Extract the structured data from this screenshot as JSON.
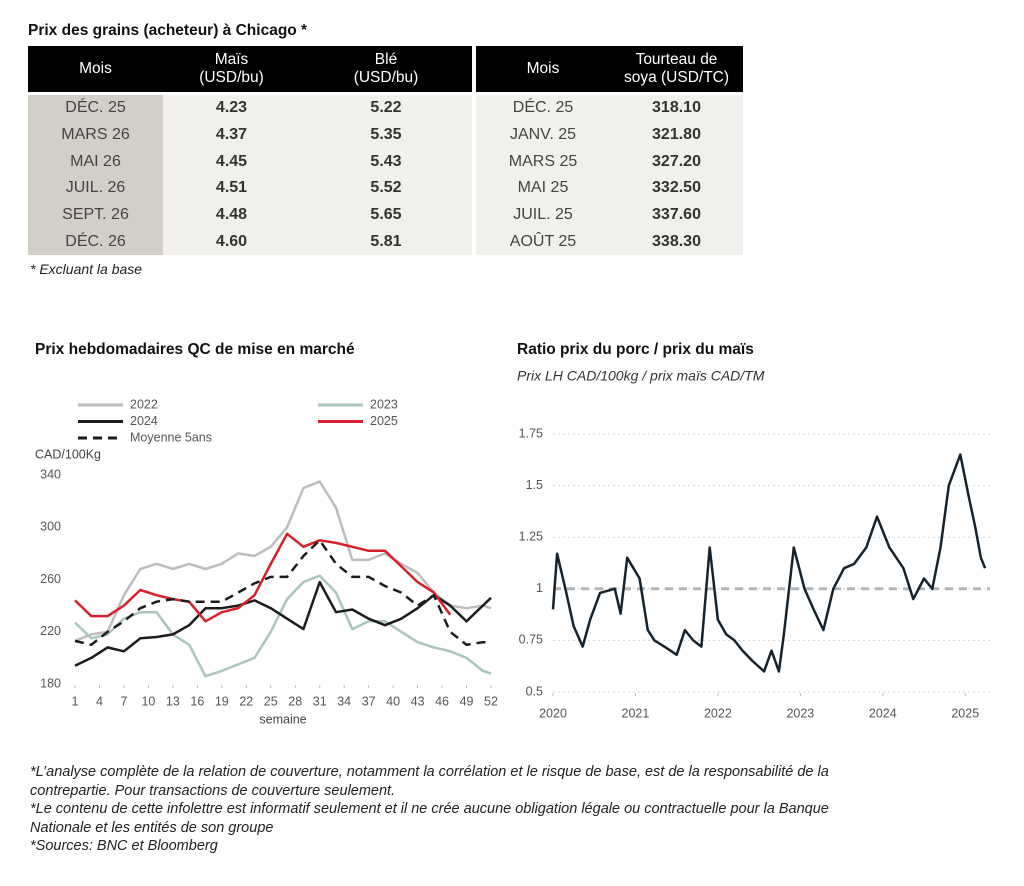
{
  "table": {
    "title": "Prix des grains (acheteur) à Chicago *",
    "headers": [
      "Mois",
      "Maïs\n(USD/bu)",
      "Blé\n(USD/bu)",
      "Mois",
      "Tourteau de\nsoya (USD/TC)"
    ],
    "rows": [
      [
        "DÉC. 25",
        "4.23",
        "5.22",
        "DÉC. 25",
        "318.10"
      ],
      [
        "MARS 26",
        "4.37",
        "5.35",
        "JANV. 25",
        "321.80"
      ],
      [
        "MAI 26",
        "4.45",
        "5.43",
        "MARS 25",
        "327.20"
      ],
      [
        "JUIL. 26",
        "4.51",
        "5.52",
        "MAI 25",
        "332.50"
      ],
      [
        "SEPT. 26",
        "4.48",
        "5.65",
        "JUIL. 25",
        "337.60"
      ],
      [
        "DÉC. 26",
        "4.60",
        "5.81",
        "AOÛT 25",
        "338.30"
      ]
    ],
    "note": "* Excluant la base"
  },
  "chart_data": [
    {
      "type": "line",
      "title": "Prix hebdomadaires QC de mise en marché",
      "y_label": "CAD/100Kg",
      "x_label": "semaine",
      "x": [
        1,
        3,
        5,
        7,
        9,
        11,
        13,
        15,
        17,
        19,
        21,
        23,
        25,
        27,
        29,
        31,
        33,
        35,
        37,
        39,
        41,
        43,
        45,
        47,
        49,
        51,
        52
      ],
      "xlim": [
        1,
        52
      ],
      "xticks": [
        1,
        4,
        7,
        10,
        13,
        16,
        19,
        22,
        25,
        28,
        31,
        34,
        37,
        40,
        43,
        46,
        49,
        52
      ],
      "ylim": [
        180,
        340
      ],
      "yticks": [
        180,
        220,
        260,
        300,
        340
      ],
      "grid": false,
      "legend": "top-left",
      "series": [
        {
          "name": "2022",
          "color": "#bdbdbd",
          "values": [
            213,
            218,
            220,
            248,
            268,
            272,
            268,
            272,
            268,
            272,
            280,
            278,
            285,
            300,
            330,
            335,
            315,
            275,
            275,
            280,
            272,
            265,
            250,
            240,
            238,
            240,
            238
          ]
        },
        {
          "name": "2023",
          "color": "#a9c6b9",
          "values": [
            227,
            215,
            218,
            230,
            235,
            235,
            218,
            210,
            186,
            190,
            195,
            200,
            220,
            245,
            258,
            263,
            250,
            222,
            228,
            228,
            220,
            212,
            208,
            205,
            200,
            190,
            188
          ]
        },
        {
          "name": "2024",
          "color": "#1c1c1c",
          "values": [
            194,
            200,
            208,
            205,
            215,
            216,
            218,
            225,
            238,
            238,
            240,
            244,
            238,
            230,
            222,
            258,
            235,
            237,
            230,
            225,
            230,
            238,
            248,
            240,
            228,
            240,
            246
          ]
        },
        {
          "name": "2025",
          "color": "#d7202b",
          "values": [
            244,
            232,
            232,
            240,
            252,
            248,
            245,
            243,
            228,
            235,
            238,
            248,
            272,
            295,
            285,
            290,
            288,
            285,
            282,
            282,
            270,
            258,
            250,
            233,
            null,
            null,
            null
          ]
        },
        {
          "name": "Moyenne 5ans",
          "color": "#1c1c1c",
          "style": "dashed",
          "values": [
            213,
            210,
            220,
            228,
            238,
            243,
            245,
            243,
            243,
            243,
            250,
            257,
            262,
            262,
            278,
            290,
            272,
            262,
            262,
            255,
            250,
            240,
            248,
            220,
            210,
            212,
            212
          ]
        }
      ]
    },
    {
      "type": "line",
      "title": "Ratio prix du porc / prix du maïs",
      "subtitle": "Prix LH CAD/100kg / prix maïs CAD/TM",
      "x": [
        2020,
        2020.05,
        2020.15,
        2020.25,
        2020.36,
        2020.45,
        2020.57,
        2020.75,
        2020.82,
        2020.9,
        2021.05,
        2021.15,
        2021.23,
        2021.35,
        2021.5,
        2021.6,
        2021.7,
        2021.8,
        2021.9,
        2022,
        2022.1,
        2022.2,
        2022.3,
        2022.42,
        2022.56,
        2022.65,
        2022.74,
        2022.8,
        2022.92,
        2023.05,
        2023.16,
        2023.28,
        2023.4,
        2023.53,
        2023.65,
        2023.8,
        2023.93,
        2024.08,
        2024.25,
        2024.37,
        2024.5,
        2024.6,
        2024.7,
        2024.8,
        2024.94,
        2025.04,
        2025.12,
        2025.19,
        2025.24
      ],
      "xlim": [
        2020,
        2025.3
      ],
      "xticks": [
        2020,
        2021,
        2022,
        2023,
        2024,
        2025
      ],
      "ylim": [
        0.5,
        1.75
      ],
      "yticks": [
        0.5,
        0.75,
        1,
        1.25,
        1.5,
        1.75
      ],
      "grid": true,
      "reference_line": 1,
      "series": [
        {
          "color": "#17232c",
          "values": [
            0.9,
            1.17,
            1.0,
            0.82,
            0.72,
            0.85,
            0.98,
            1.0,
            0.88,
            1.15,
            1.05,
            0.8,
            0.75,
            0.72,
            0.68,
            0.8,
            0.75,
            0.72,
            1.2,
            0.85,
            0.78,
            0.75,
            0.7,
            0.65,
            0.6,
            0.7,
            0.6,
            0.78,
            1.2,
            1.0,
            0.9,
            0.8,
            1.0,
            1.1,
            1.12,
            1.2,
            1.35,
            1.2,
            1.1,
            0.95,
            1.05,
            1.0,
            1.2,
            1.5,
            1.65,
            1.45,
            1.3,
            1.15,
            1.1
          ]
        }
      ]
    }
  ],
  "footer": [
    "*L’analyse complète de la relation de couverture, notamment la corrélation et le risque de base, est de la responsabilité de la contrepartie. Pour transactions de couverture seulement.",
    "*Le contenu de cette infolettre est informatif seulement et il ne crée aucune obligation légale ou contractuelle pour la Banque Nationale et les entités de son groupe",
    "*Sources: BNC et Bloomberg"
  ]
}
